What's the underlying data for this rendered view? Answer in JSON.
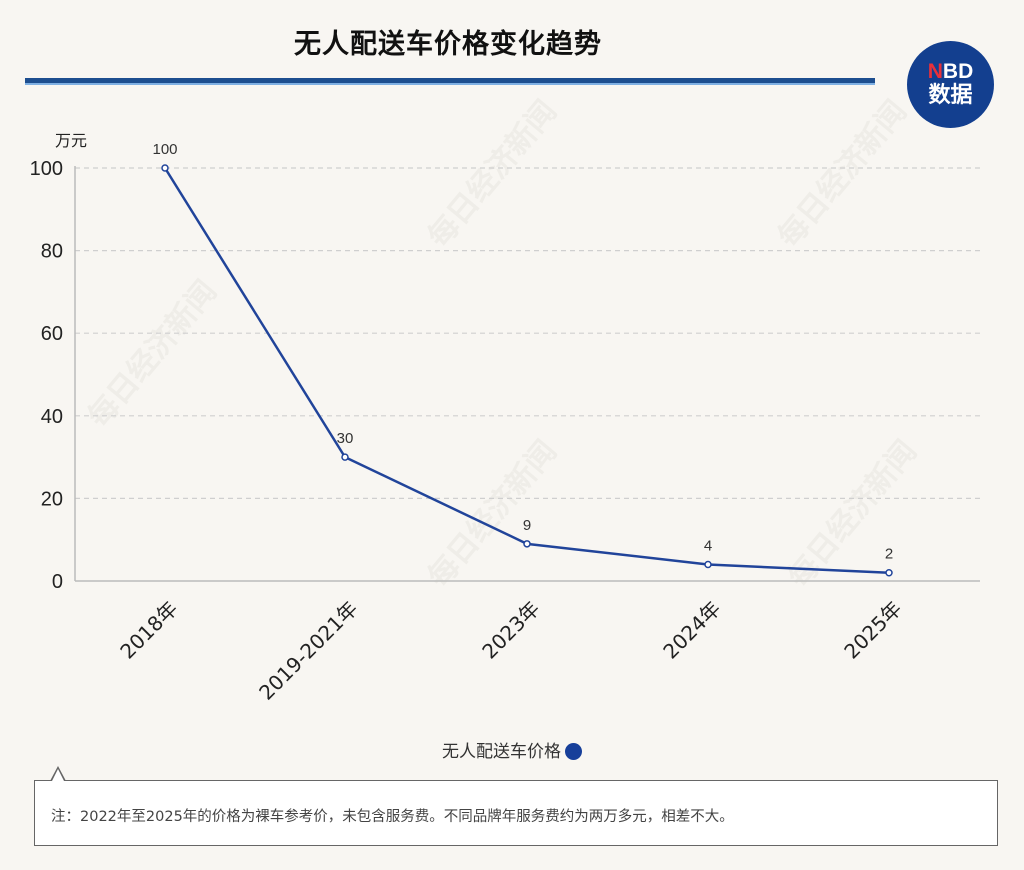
{
  "header": {
    "title": "无人配送车价格变化趋势",
    "logo_prefix": "N",
    "logo_suffix": "BD",
    "logo_cn": "数据"
  },
  "unit_label": "万元",
  "legend": {
    "label": "无人配送车价格",
    "color": "#173f9a"
  },
  "note": "注：2022年至2025年的价格为裸车参考价，未包含服务费。不同品牌年服务费约为两万多元，相差不大。",
  "watermark": "每日经济新闻",
  "colors": {
    "line": "#21449a",
    "title_rule": "#1d4e8f",
    "logo_bg": "#133f8f",
    "logo_accent": "#e8303a",
    "background": "#f8f6f2"
  },
  "chart_data": {
    "type": "line",
    "title": "无人配送车价格变化趋势",
    "xlabel": "",
    "ylabel": "万元",
    "categories": [
      "2018年",
      "2019-2021年",
      "2023年",
      "2024年",
      "2025年"
    ],
    "series": [
      {
        "name": "无人配送车价格",
        "values": [
          100,
          30,
          9,
          4,
          2
        ]
      }
    ],
    "data_labels": [
      "100",
      "30",
      "9",
      "4",
      "2"
    ],
    "yticks": [
      0,
      20,
      40,
      60,
      80,
      100
    ],
    "ylim": [
      0,
      100
    ],
    "grid": true,
    "legend_position": "bottom"
  }
}
